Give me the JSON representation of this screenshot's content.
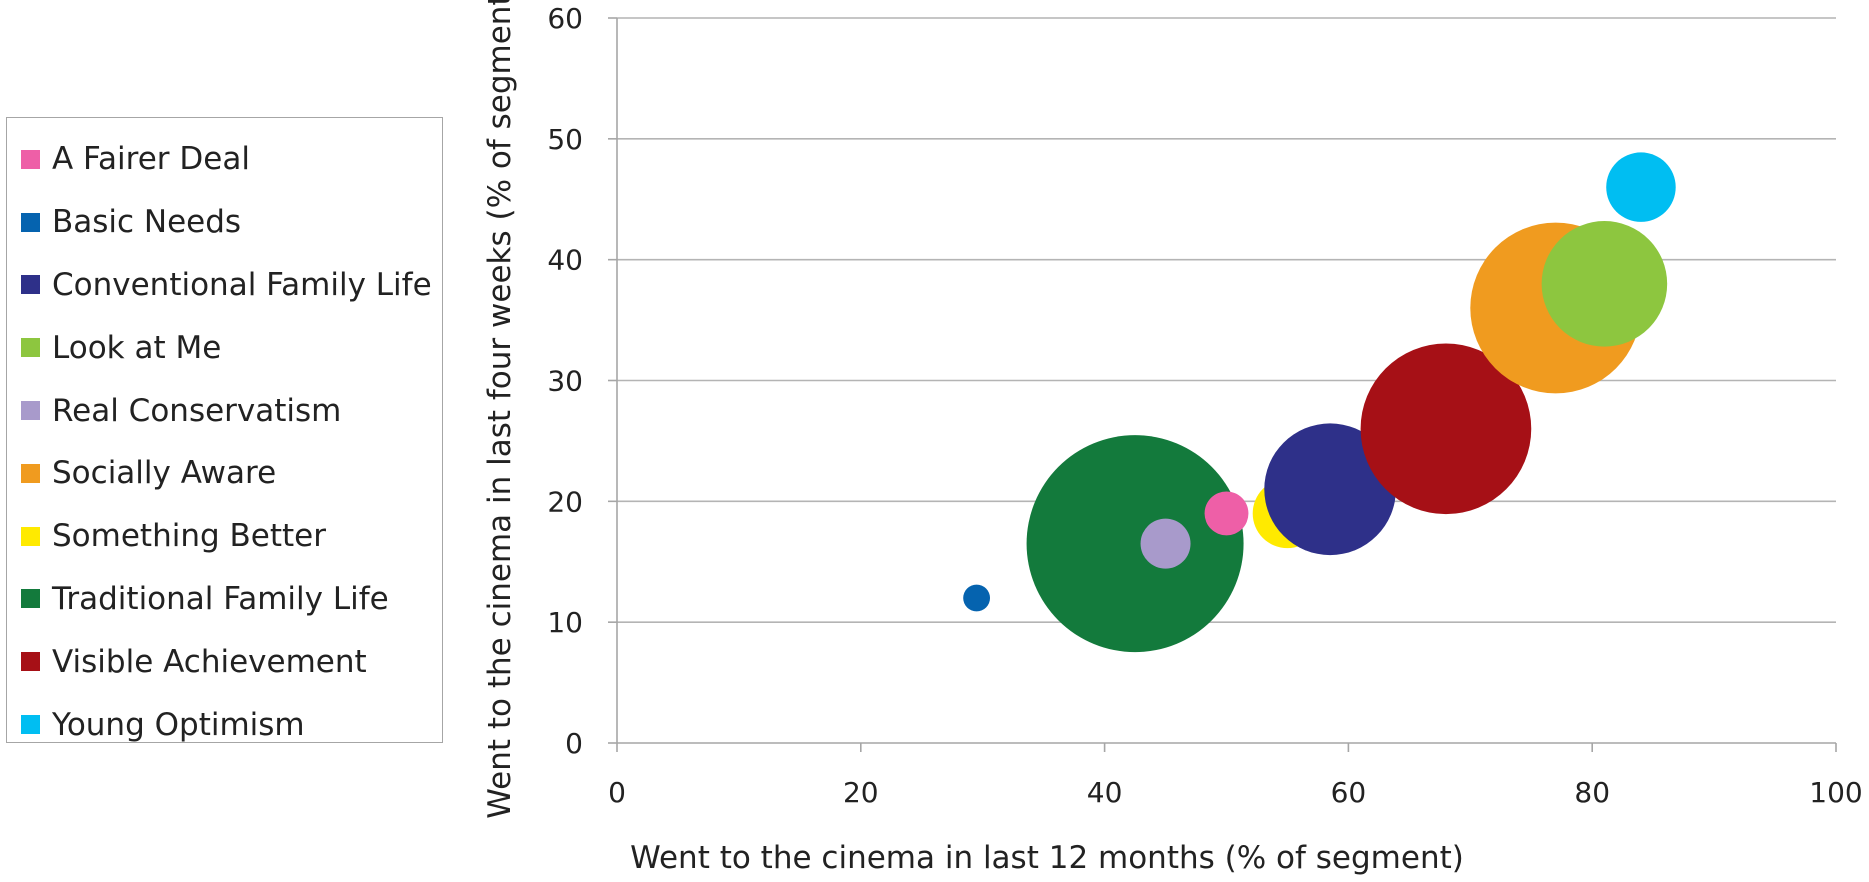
{
  "chart_data": {
    "type": "bubble",
    "xlabel": "Went to the cinema in last 12 months (% of segment)",
    "ylabel": "Went to the cinema in last four weeks (% of segment)",
    "xlim": [
      0,
      100
    ],
    "ylim": [
      0,
      60
    ],
    "xticks": [
      0,
      20,
      40,
      60,
      80,
      100
    ],
    "yticks": [
      0,
      10,
      20,
      30,
      40,
      50,
      60
    ],
    "grid": "horizontal",
    "legend_position": "left",
    "series": [
      {
        "name": "A Fairer Deal",
        "color": "#EE5FA7",
        "x": 50,
        "y": 19,
        "size": 3.6
      },
      {
        "name": "Basic Needs",
        "color": "#0563AF",
        "x": 29.5,
        "y": 12,
        "size": 2.2
      },
      {
        "name": "Conventional Family Life",
        "color": "#2E3089",
        "x": 58.5,
        "y": 21,
        "size": 10.8
      },
      {
        "name": "Look at Me",
        "color": "#8DC63F",
        "x": 81,
        "y": 38,
        "size": 10.3
      },
      {
        "name": "Real Conservatism",
        "color": "#A89ACB",
        "x": 45,
        "y": 16.5,
        "size": 4.1
      },
      {
        "name": "Socially Aware",
        "color": "#F09B1F",
        "x": 77,
        "y": 36,
        "size": 14
      },
      {
        "name": "Something Better",
        "color": "#FFEA00",
        "x": 55,
        "y": 19,
        "size": 5.7
      },
      {
        "name": "Traditional Family Life",
        "color": "#137A3C",
        "x": 42.5,
        "y": 16.5,
        "size": 17.8
      },
      {
        "name": "Visible Achievement",
        "color": "#A61016",
        "x": 68,
        "y": 26,
        "size": 14
      },
      {
        "name": "Young Optimism",
        "color": "#00BEF2",
        "x": 84,
        "y": 46,
        "size": 5.7
      }
    ]
  }
}
